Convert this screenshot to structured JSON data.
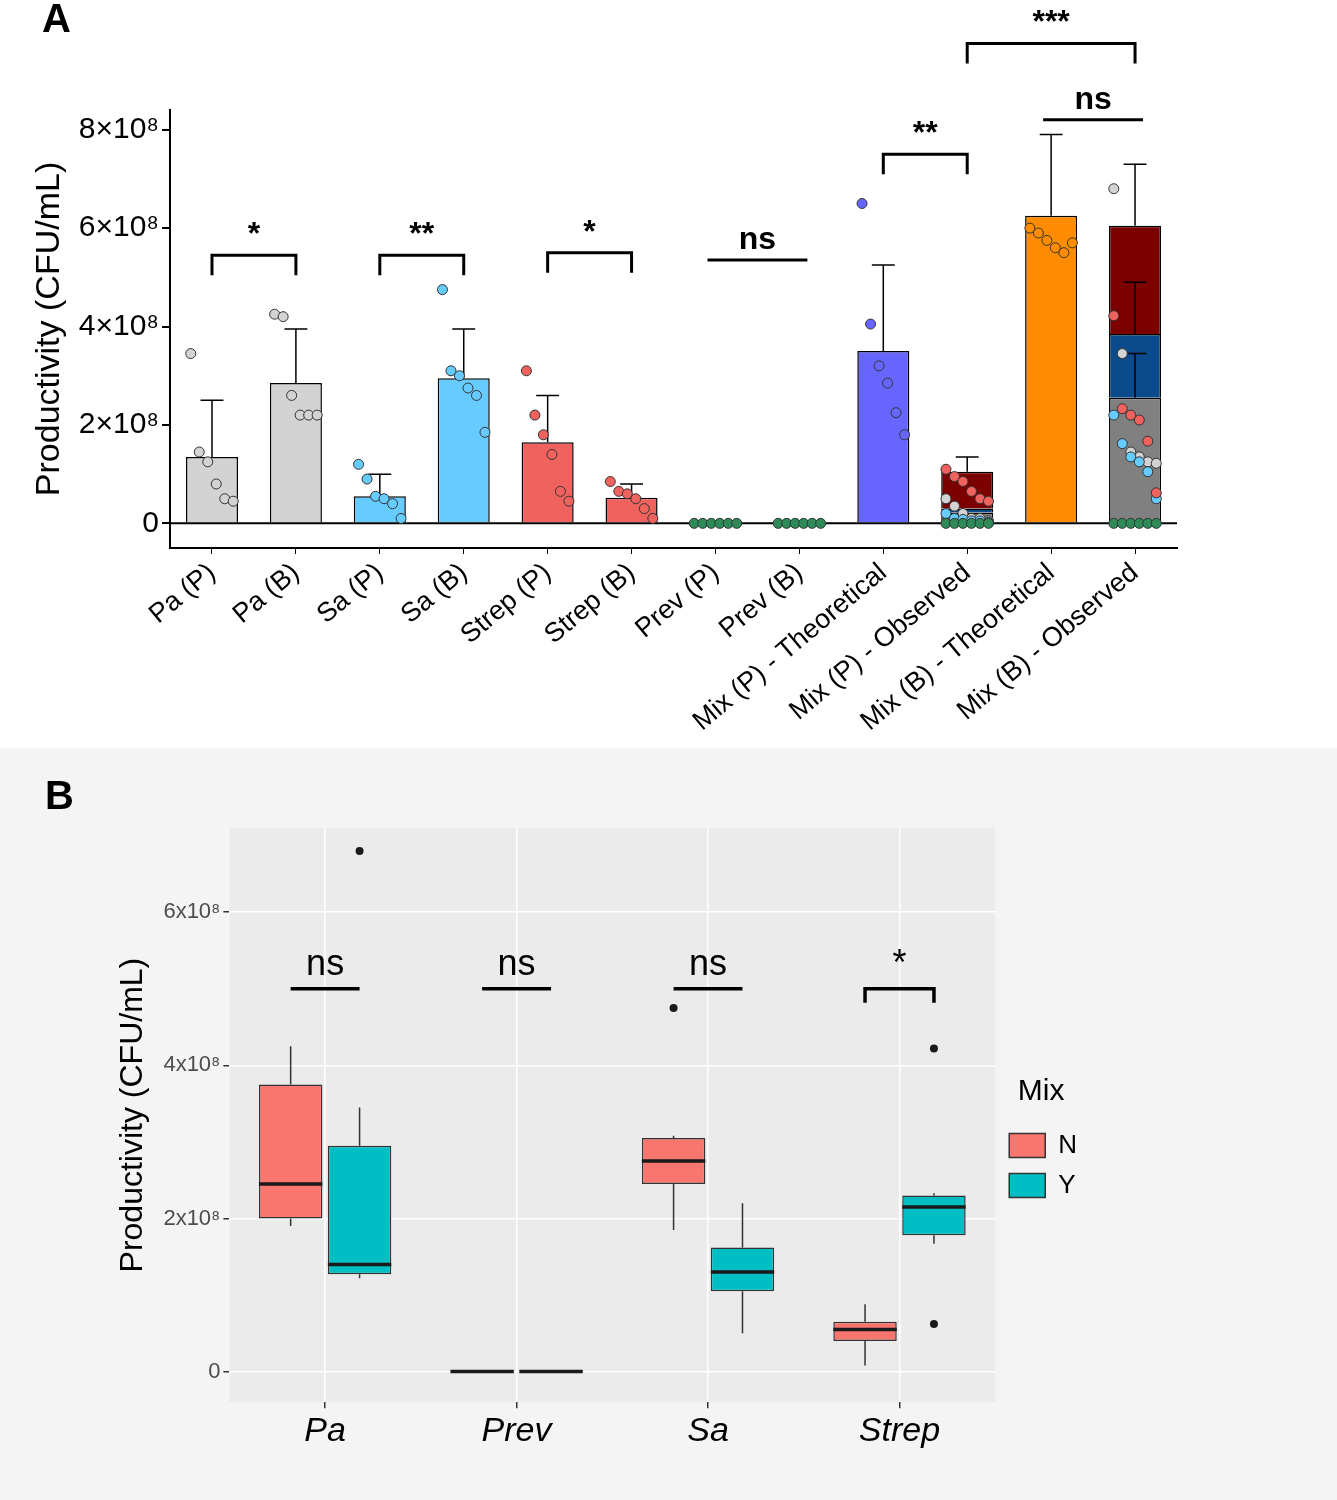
{
  "chart_data": [
    {
      "type": "bar",
      "title": "A",
      "y_label": "Productivity (CFU/mL)",
      "categories": [
        "Pa (P)",
        "Pa (B)",
        "Sa (P)",
        "Sa (B)",
        "Strep (P)",
        "Strep (B)",
        "Prev (P)",
        "Prev (B)",
        "Mix (P) - Theoretical",
        "Mix (P) - Observed",
        "Mix (B) - Theoretical",
        "Mix (B) - Observed"
      ],
      "ylim": [
        -50000000,
        840000000
      ],
      "yticks": [
        0,
        {
          "value": 200000000,
          "label": "2×10⁸"
        },
        {
          "value": 400000000,
          "label": "4×10⁸"
        },
        {
          "value": 600000000,
          "label": "6×10⁸"
        },
        {
          "value": 800000000,
          "label": "8×10⁸"
        }
      ],
      "grid": false,
      "stacked": true,
      "series": [
        {
          "name": "Pa",
          "color": "#d3d3d3",
          "colors": [
            "#d3d3d3",
            "#d3d3d3",
            null,
            null,
            null,
            null,
            null,
            null,
            null,
            "#808080",
            null,
            "#808080"
          ],
          "values": [
            135000000,
            285000000,
            null,
            null,
            null,
            null,
            null,
            null,
            null,
            22000000,
            null,
            255000000
          ],
          "errors": [
            115000000,
            110000000,
            null,
            null,
            null,
            null,
            null,
            null,
            null,
            null,
            null,
            90000000
          ],
          "points": [
            [
              345000000,
              145000000,
              125000000,
              80000000,
              50000000,
              45000000
            ],
            [
              425000000,
              420000000,
              260000000,
              220000000,
              220000000,
              220000000
            ],
            null,
            null,
            null,
            null,
            null,
            null,
            null,
            [
              50000000,
              35000000,
              20000000,
              10000000,
              10000000,
              5000000
            ],
            null,
            [
              680000000,
              345000000,
              145000000,
              135000000,
              125000000,
              122000000
            ]
          ]
        },
        {
          "name": "Sa",
          "color": "#66ccff",
          "colors": [
            null,
            null,
            "#66ccff",
            "#66ccff",
            null,
            null,
            null,
            null,
            null,
            "#0b4a8b",
            null,
            "#0b4a8b"
          ],
          "values": [
            null,
            null,
            55000000,
            295000000,
            null,
            null,
            null,
            null,
            null,
            8000000,
            null,
            130000000
          ],
          "errors": [
            null,
            null,
            45000000,
            100000000,
            null,
            null,
            null,
            null,
            null,
            null,
            null,
            105000000
          ],
          "points": [
            null,
            null,
            [
              120000000,
              90000000,
              55000000,
              50000000,
              40000000,
              10000000
            ],
            [
              475000000,
              310000000,
              300000000,
              275000000,
              260000000,
              185000000
            ],
            null,
            null,
            null,
            null,
            null,
            [
              20000000,
              10000000,
              8000000,
              5000000,
              5000000,
              2000000
            ],
            null,
            [
              220000000,
              162000000,
              135000000,
              125000000,
              105000000,
              50000000
            ]
          ]
        },
        {
          "name": "Strep",
          "color": "#f0625e",
          "colors": [
            null,
            null,
            null,
            null,
            "#f0625e",
            "#f0625e",
            null,
            null,
            null,
            "#7b0000",
            null,
            "#7b0000"
          ],
          "values": [
            null,
            null,
            null,
            null,
            165000000,
            52000000,
            null,
            null,
            null,
            75000000,
            null,
            220000000
          ],
          "errors": [
            null,
            null,
            null,
            null,
            95000000,
            28000000,
            null,
            null,
            null,
            30000000,
            null,
            125000000
          ],
          "points": [
            null,
            null,
            null,
            null,
            [
              310000000,
              220000000,
              180000000,
              140000000,
              65000000,
              45000000
            ],
            [
              85000000,
              65000000,
              60000000,
              50000000,
              30000000,
              10000000
            ],
            null,
            null,
            null,
            [
              110000000,
              95000000,
              85000000,
              65000000,
              50000000,
              45000000
            ],
            null,
            [
              422000000,
              233000000,
              220000000,
              210000000,
              167000000,
              62000000
            ]
          ]
        },
        {
          "name": "Prev",
          "color": "#2e8b57",
          "colors": [
            null,
            null,
            null,
            null,
            null,
            null,
            "#2e8b57",
            "#2e8b57",
            null,
            "#2e8b57",
            null,
            "#2e8b57"
          ],
          "values": [
            null,
            null,
            null,
            null,
            null,
            null,
            0,
            0,
            null,
            0,
            null,
            0
          ],
          "points": [
            null,
            null,
            null,
            null,
            null,
            null,
            [
              0,
              0,
              0,
              0,
              0,
              0
            ],
            [
              0,
              0,
              0,
              0,
              0,
              0
            ],
            null,
            [
              0,
              0,
              0,
              0,
              0,
              0
            ],
            null,
            [
              0,
              0,
              0,
              0,
              0,
              0
            ]
          ]
        },
        {
          "name": "Mix",
          "colors": [
            null,
            null,
            null,
            null,
            null,
            null,
            null,
            null,
            "#6666ff",
            null,
            "#ff8c00",
            null
          ],
          "values": [
            null,
            null,
            null,
            null,
            null,
            null,
            null,
            null,
            350000000,
            null,
            625000000,
            null
          ],
          "errors": [
            null,
            null,
            null,
            null,
            null,
            null,
            null,
            null,
            175000000,
            null,
            165000000,
            null
          ],
          "points": [
            null,
            null,
            null,
            null,
            null,
            null,
            null,
            null,
            [
              650000000,
              405000000,
              320000000,
              285000000,
              225000000,
              180000000
            ],
            null,
            [
              600000000,
              590000000,
              575000000,
              560000000,
              550000000,
              570000000
            ],
            null
          ]
        }
      ],
      "annotations": [
        {
          "from": "Pa (P)",
          "to": "Pa (B)",
          "y": 545000000,
          "label": "*",
          "line_style": "bracket"
        },
        {
          "from": "Sa (P)",
          "to": "Sa (B)",
          "y": 545000000,
          "label": "**",
          "line_style": "bracket"
        },
        {
          "from": "Strep (P)",
          "to": "Strep (B)",
          "y": 550000000,
          "label": "*",
          "line_style": "bracket"
        },
        {
          "from": "Prev (P)",
          "to": "Prev (B)",
          "y": 535000000,
          "label": "ns",
          "line_style": "line"
        },
        {
          "from": "Mix (P) - Theoretical",
          "to": "Mix (P) - Observed",
          "y": 750000000,
          "label": "**",
          "line_style": "bracket"
        },
        {
          "from": "Mix (B) - Theoretical",
          "to": "Mix (B) - Observed",
          "y": 820000000,
          "label": "ns",
          "line_style": "line"
        },
        {
          "from": "Mix (P) - Observed",
          "to": "Mix (B) - Observed",
          "y": 975000000,
          "label": "***",
          "line_style": "bracket"
        }
      ]
    },
    {
      "type": "box",
      "title": "B",
      "y_label": "Productivity (CFU/mL)",
      "categories": [
        "Pa",
        "Prev",
        "Sa",
        "Strep"
      ],
      "ylim": [
        -40000000,
        710000000
      ],
      "yticks": [
        0,
        {
          "value": 200000000,
          "label": "2x10⁸"
        },
        {
          "value": 400000000,
          "label": "4x10⁸"
        },
        {
          "value": 600000000,
          "label": "6x10⁸"
        }
      ],
      "grid": true,
      "legend": "right",
      "legend_title": "Mix",
      "series": [
        {
          "name": "N",
          "color": "#f8766d",
          "boxes": [
            {
              "min": 190000000,
              "q1": 200000000,
              "median": 245000000,
              "q3": 375000000,
              "max": 425000000,
              "outliers": []
            },
            {
              "min": 0,
              "q1": 0,
              "median": 0,
              "q3": 0,
              "max": 0,
              "outliers": []
            },
            {
              "min": 185000000,
              "q1": 245000000,
              "median": 275000000,
              "q3": 305000000,
              "max": 308000000,
              "outliers": [
                475000000
              ]
            },
            {
              "min": 8000000,
              "q1": 40000000,
              "median": 55000000,
              "q3": 65000000,
              "max": 88000000,
              "outliers": []
            }
          ]
        },
        {
          "name": "Y",
          "color": "#00bfc4",
          "boxes": [
            {
              "min": 122000000,
              "q1": 127000000,
              "median": 140000000,
              "q3": 295000000,
              "max": 345000000,
              "outliers": [
                680000000
              ]
            },
            {
              "min": 0,
              "q1": 0,
              "median": 0,
              "q3": 0,
              "max": 0,
              "outliers": []
            },
            {
              "min": 50000000,
              "q1": 105000000,
              "median": 130000000,
              "q3": 162000000,
              "max": 220000000,
              "outliers": []
            },
            {
              "min": 167000000,
              "q1": 178000000,
              "median": 215000000,
              "q3": 230000000,
              "max": 233000000,
              "outliers": [
                422000000,
                62000000
              ]
            }
          ]
        }
      ],
      "annotations": [
        {
          "category": "Pa",
          "y": 500000000,
          "label": "ns",
          "line_style": "line"
        },
        {
          "category": "Prev",
          "y": 500000000,
          "label": "ns",
          "line_style": "line"
        },
        {
          "category": "Sa",
          "y": 500000000,
          "label": "ns",
          "line_style": "line"
        },
        {
          "category": "Strep",
          "y": 500000000,
          "label": "*",
          "line_style": "bracket"
        }
      ]
    }
  ]
}
